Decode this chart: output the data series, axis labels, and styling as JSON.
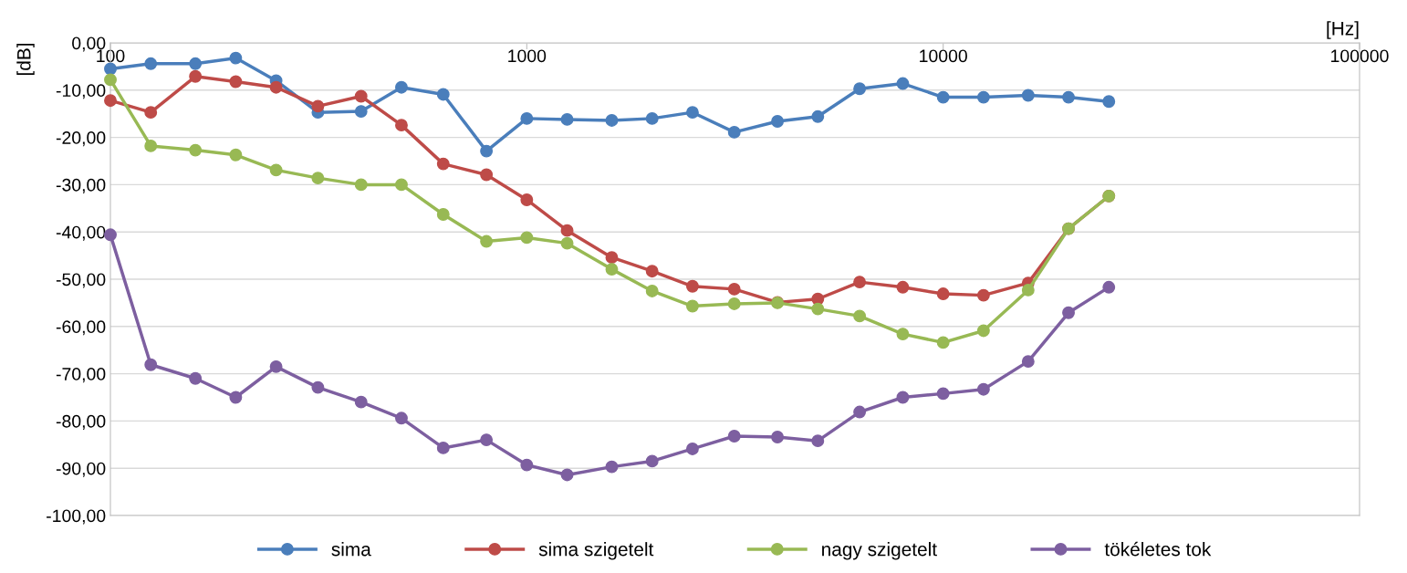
{
  "chart_data": {
    "type": "line",
    "xlabel": "[Hz]",
    "ylabel": "[dB]",
    "log": "x",
    "x": [
      100,
      125,
      160,
      200,
      250,
      315,
      400,
      500,
      630,
      800,
      1000,
      1250,
      1600,
      2000,
      2500,
      3150,
      4000,
      5000,
      6300,
      8000,
      10000,
      12500,
      16000,
      20000,
      25000
    ],
    "series": [
      {
        "name": "sima",
        "color": "#4a7ebb",
        "values": [
          -5.5,
          -4.4,
          -4.4,
          -3.2,
          -8.0,
          -14.7,
          -14.5,
          -9.4,
          -10.9,
          -22.9,
          -16.0,
          -16.2,
          -16.4,
          -16.0,
          -14.7,
          -18.9,
          -16.6,
          -15.6,
          -9.7,
          -8.6,
          -11.5,
          -11.5,
          -11.1,
          -11.5,
          -12.4
        ]
      },
      {
        "name": "sima szigetelt",
        "color": "#be4b48",
        "values": [
          -12.2,
          -14.7,
          -7.1,
          -8.2,
          -9.4,
          -13.4,
          -11.3,
          -17.4,
          -25.6,
          -27.9,
          -33.2,
          -39.7,
          -45.4,
          -48.3,
          -51.5,
          -52.1,
          -54.9,
          -54.2,
          -50.6,
          -51.7,
          -53.1,
          -53.4,
          -50.8,
          -39.3,
          -32.4
        ]
      },
      {
        "name": "nagy szigetelt",
        "color": "#98b954",
        "values": [
          -7.8,
          -21.8,
          -22.7,
          -23.7,
          -26.9,
          -28.6,
          -30.0,
          -30.0,
          -36.3,
          -42.0,
          -41.2,
          -42.4,
          -47.9,
          -52.5,
          -55.7,
          -55.2,
          -55.0,
          -56.3,
          -57.8,
          -61.6,
          -63.4,
          -60.9,
          -52.3,
          -39.3,
          -32.4
        ]
      },
      {
        "name": "tökéletes tok",
        "color": "#7d5fa0",
        "values": [
          -40.6,
          -68.1,
          -71.0,
          -75.0,
          -68.5,
          -72.9,
          -76.0,
          -79.4,
          -85.7,
          -84.0,
          -89.3,
          -91.4,
          -89.7,
          -88.5,
          -85.9,
          -83.2,
          -83.4,
          -84.2,
          -78.1,
          -75.0,
          -74.2,
          -73.3,
          -67.4,
          -57.1,
          -51.7
        ]
      }
    ],
    "xlim": [
      100,
      100000
    ],
    "xticks": [
      100,
      1000,
      10000,
      100000
    ],
    "ylim": [
      -100,
      0
    ],
    "yticks": [
      {
        "value": 0,
        "label": "0,00"
      },
      {
        "value": -10,
        "label": "-10,00"
      },
      {
        "value": -20,
        "label": "-20,00"
      },
      {
        "value": -30,
        "label": "-30,00"
      },
      {
        "value": -40,
        "label": "-40,00"
      },
      {
        "value": -50,
        "label": "-50,00"
      },
      {
        "value": -60,
        "label": "-60,00"
      },
      {
        "value": -70,
        "label": "-70,00"
      },
      {
        "value": -80,
        "label": "-80,00"
      },
      {
        "value": -90,
        "label": "-90,00"
      },
      {
        "value": -100,
        "label": "-100,00"
      }
    ],
    "grid": "y",
    "legend": "bottom",
    "marker": "circle",
    "line_style": "solid"
  }
}
